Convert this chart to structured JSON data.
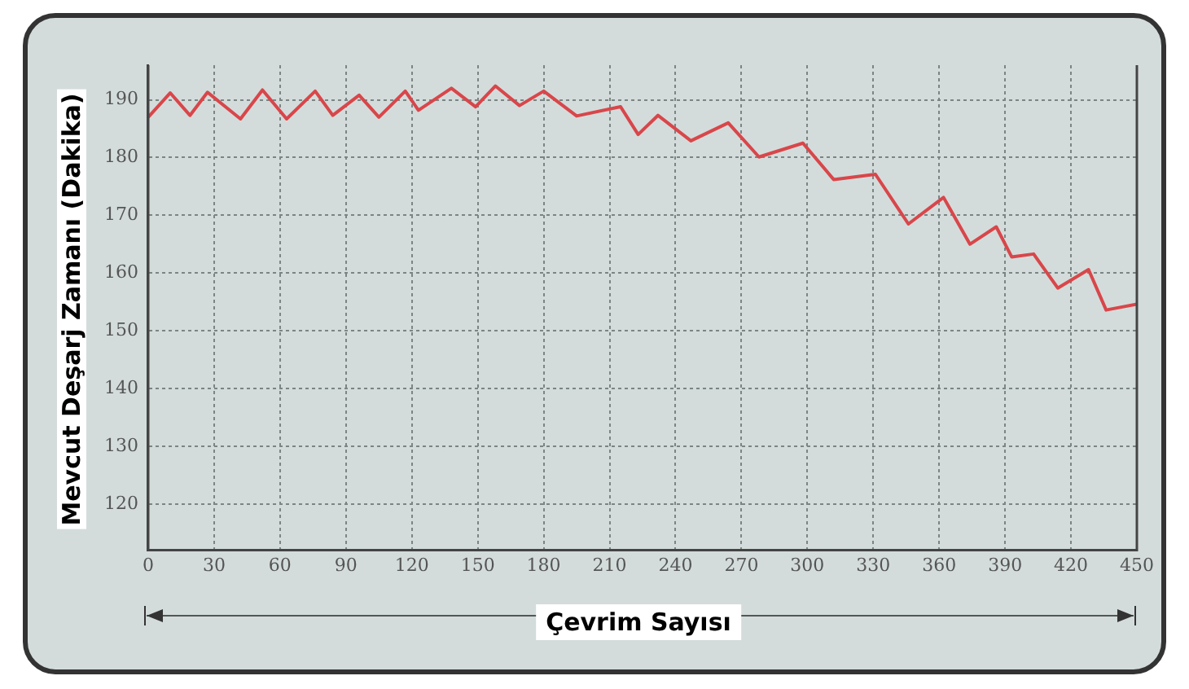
{
  "chart_data": {
    "type": "line",
    "xlabel": "Çevrim Sayısı",
    "ylabel": "Mevcut Deşarj Zamanı (Dakika)",
    "xlim": [
      0,
      450
    ],
    "xticks": [
      0,
      30,
      60,
      90,
      120,
      150,
      180,
      210,
      240,
      270,
      300,
      330,
      360,
      390,
      420,
      450
    ],
    "ylim": [
      112,
      196
    ],
    "yticks": [
      120,
      130,
      140,
      150,
      160,
      170,
      180,
      190
    ],
    "grid": true,
    "marker": "none",
    "line_style": "solid",
    "legend": false,
    "series": [
      {
        "color": "#d9464a",
        "x": [
          0,
          10,
          19,
          27,
          42,
          52,
          63,
          76,
          84,
          96,
          105,
          117,
          123,
          138,
          149,
          158,
          169,
          180,
          195,
          215,
          223,
          232,
          247,
          264,
          278,
          298,
          312,
          331,
          346,
          362,
          374,
          386,
          393,
          403,
          414,
          428,
          436,
          450
        ],
        "values": [
          187,
          191.2,
          187.3,
          191.3,
          186.7,
          191.7,
          186.7,
          191.5,
          187.3,
          190.8,
          187,
          191.5,
          188.2,
          192,
          188.8,
          192.4,
          189,
          191.5,
          187.2,
          188.8,
          184,
          187.3,
          182.9,
          186,
          180.1,
          182.5,
          176.2,
          177.1,
          168.5,
          173.1,
          165,
          168,
          162.8,
          163.3,
          157.4,
          160.6,
          153.6,
          154.6
        ]
      }
    ]
  }
}
